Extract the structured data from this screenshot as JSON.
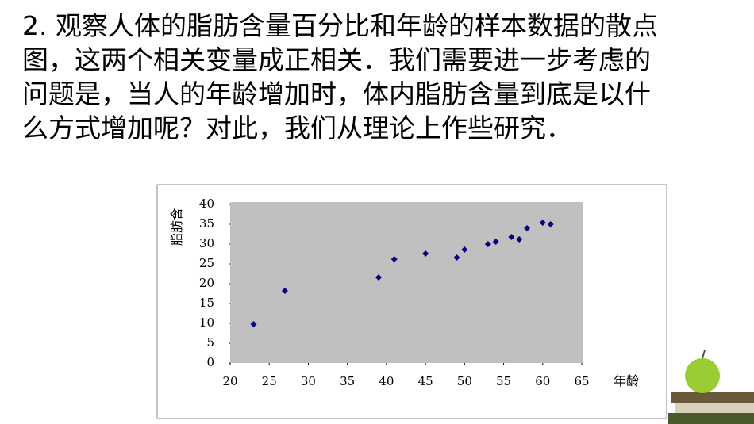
{
  "text": {
    "lines": [
      "2. 观察人体的脂肪含量百分比和年龄的样本数据的散点",
      "图，这两个相关变量成正相关．我们需要进一步考虑的",
      "问题是，当人的年龄增加时，体内脂肪含量到底是以什",
      "么方式增加呢？对此，我们从理论上作些研究．"
    ]
  },
  "chart_data": {
    "type": "scatter",
    "x_label": "年龄",
    "y_label": "脂肪含",
    "series": [
      {
        "color": "#000080",
        "x": [
          23,
          27,
          39,
          41,
          45,
          49,
          50,
          53,
          54,
          56,
          57,
          58,
          60,
          61
        ],
        "values": [
          9.8,
          18.2,
          21.6,
          26.2,
          27.6,
          26.6,
          28.6,
          30,
          30.6,
          31.8,
          31.2,
          34,
          35.4,
          35
        ]
      }
    ],
    "xlim": [
      20,
      65
    ],
    "xticks": [
      20,
      25,
      30,
      35,
      40,
      45,
      50,
      55,
      60,
      65
    ],
    "ylim": [
      0,
      40
    ],
    "yticks": [
      0,
      5,
      10,
      15,
      20,
      25,
      30,
      35,
      40
    ],
    "plot_background": "#c0c0c0"
  }
}
